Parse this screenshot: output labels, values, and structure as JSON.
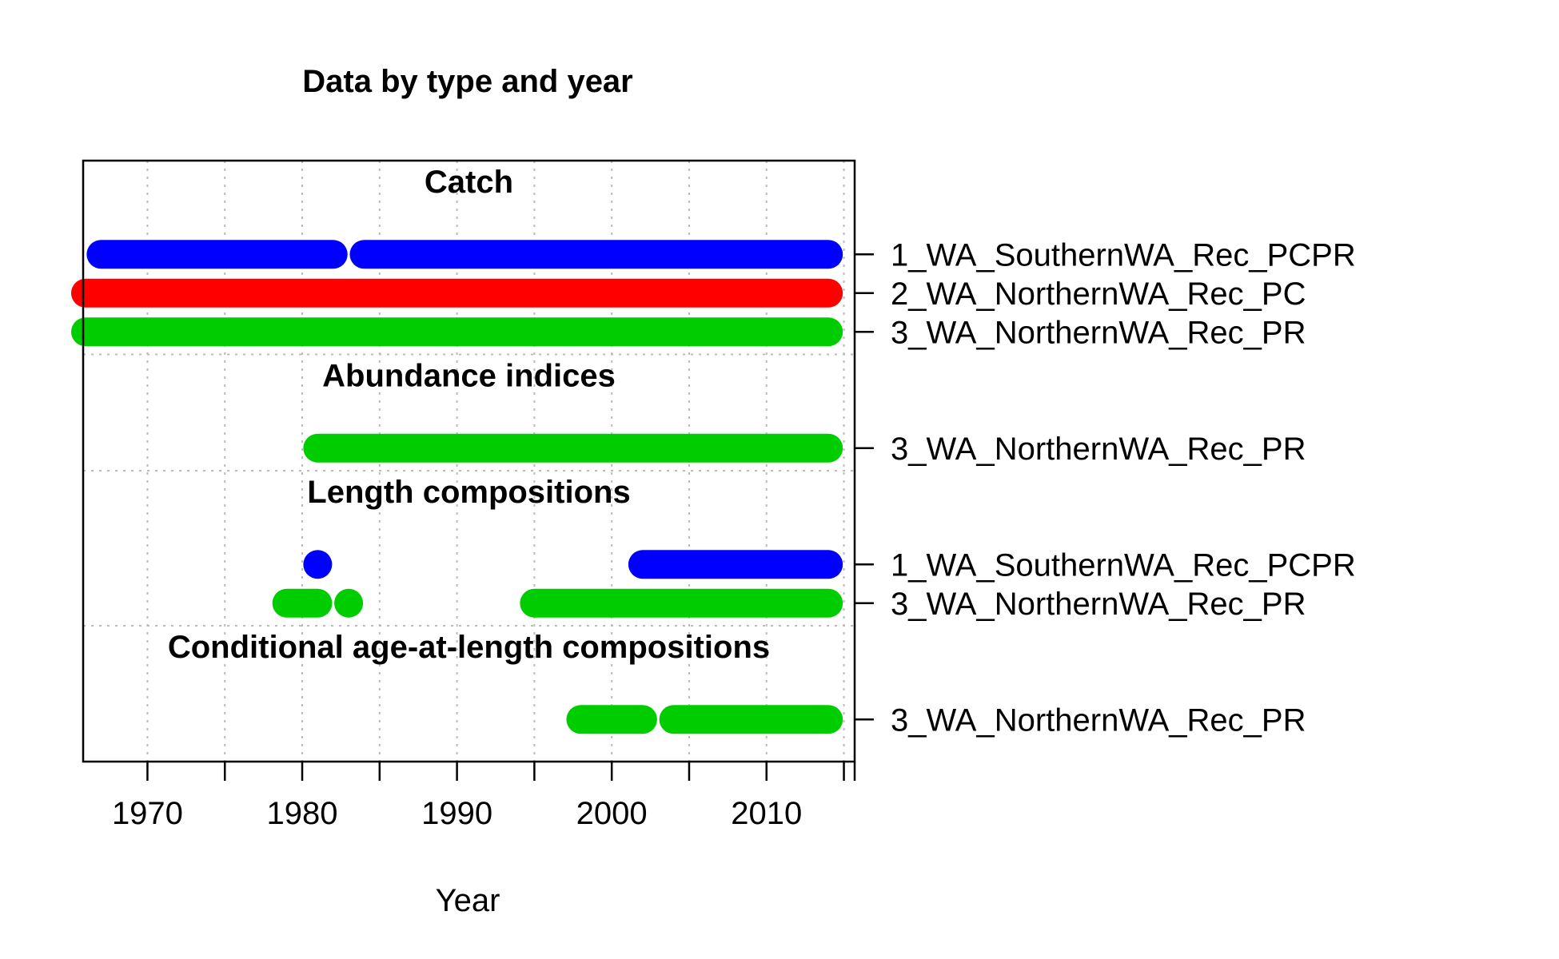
{
  "chart_data": {
    "type": "timeline",
    "title": "Data by type and year",
    "xlabel": "Year",
    "xlim": [
      1966,
      2015
    ],
    "x_ticks": [
      1970,
      1980,
      1990,
      2000,
      2010
    ],
    "grid": true,
    "colors": {
      "1_WA_SouthernWA_Rec_PCPR": "#0000ff",
      "2_WA_NorthernWA_Rec_PC": "#ff0000",
      "3_WA_NorthernWA_Rec_PR": "#00cd00"
    },
    "sections": [
      {
        "name": "Catch",
        "fleets": [
          {
            "label": "1_WA_SouthernWA_Rec_PCPR",
            "color": "#0000ff",
            "segments": [
              [
                1967,
                1982
              ],
              [
                1984,
                2014
              ]
            ]
          },
          {
            "label": "2_WA_NorthernWA_Rec_PC",
            "color": "#ff0000",
            "segments": [
              [
                1966,
                2014
              ]
            ]
          },
          {
            "label": "3_WA_NorthernWA_Rec_PR",
            "color": "#00cd00",
            "segments": [
              [
                1966,
                2014
              ]
            ]
          }
        ]
      },
      {
        "name": "Abundance indices",
        "fleets": [
          {
            "label": "3_WA_NorthernWA_Rec_PR",
            "color": "#00cd00",
            "segments": [
              [
                1981,
                2014
              ]
            ]
          }
        ]
      },
      {
        "name": "Length compositions",
        "fleets": [
          {
            "label": "1_WA_SouthernWA_Rec_PCPR",
            "color": "#0000ff",
            "segments": [
              [
                1981,
                1981
              ],
              [
                2002,
                2014
              ]
            ]
          },
          {
            "label": "3_WA_NorthernWA_Rec_PR",
            "color": "#00cd00",
            "segments": [
              [
                1979,
                1981
              ],
              [
                1983,
                1983
              ],
              [
                1995,
                2014
              ]
            ]
          }
        ]
      },
      {
        "name": "Conditional age-at-length compositions",
        "fleets": [
          {
            "label": "3_WA_NorthernWA_Rec_PR",
            "color": "#00cd00",
            "segments": [
              [
                1998,
                2002
              ],
              [
                2004,
                2014
              ]
            ]
          }
        ]
      }
    ]
  }
}
